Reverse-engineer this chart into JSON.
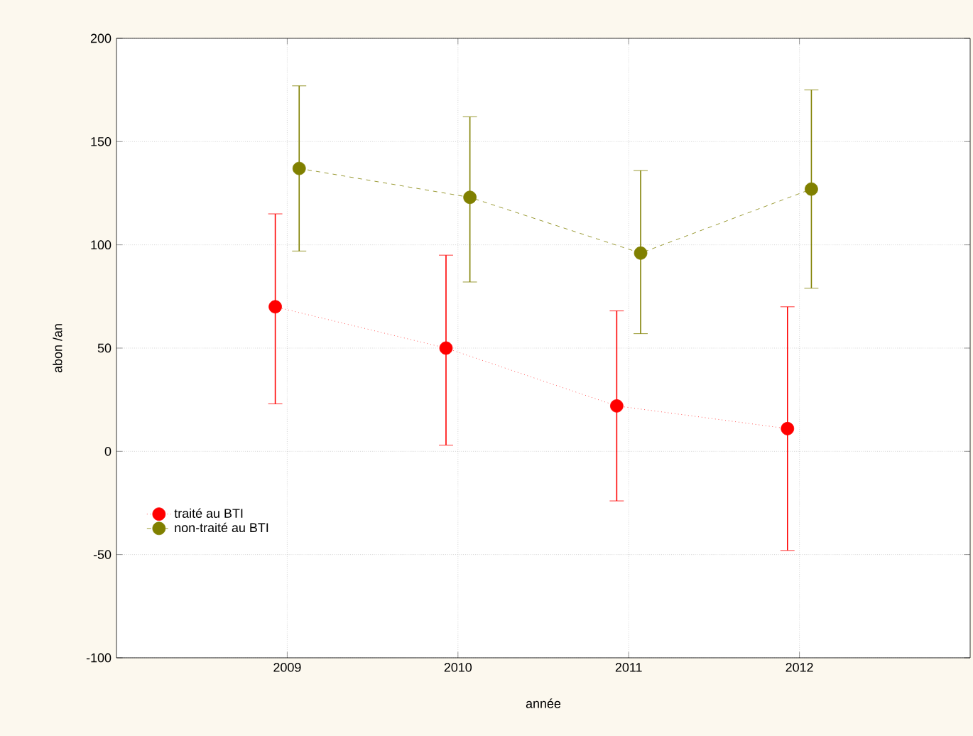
{
  "chart_data": {
    "type": "line",
    "xlabel": "année",
    "ylabel": "abon /an",
    "xlim": [
      2008,
      2013
    ],
    "xticks": [
      2009,
      2010,
      2011,
      2012
    ],
    "ylim": [
      -100,
      200
    ],
    "yticks": [
      -100,
      -50,
      0,
      50,
      100,
      150,
      200
    ],
    "grid": true,
    "legend": "bottom left",
    "marker": "circle",
    "series": [
      {
        "name": "traité au BTI",
        "color": "#ff0000",
        "line_style": "dotted",
        "x": [
          2008.93,
          2009.93,
          2010.93,
          2011.93
        ],
        "values": [
          70,
          50,
          22,
          11
        ],
        "errors": [
          [
            23,
            115
          ],
          [
            3,
            95
          ],
          [
            -24,
            68
          ],
          [
            -48,
            70
          ]
        ]
      },
      {
        "name": "non-traité au BTI",
        "color": "#808000",
        "line_style": "dashed",
        "x": [
          2009.07,
          2010.07,
          2011.07,
          2012.07
        ],
        "values": [
          137,
          123,
          96,
          127
        ],
        "errors": [
          [
            97,
            177
          ],
          [
            82,
            162
          ],
          [
            57,
            136
          ],
          [
            79,
            175
          ]
        ]
      }
    ]
  }
}
